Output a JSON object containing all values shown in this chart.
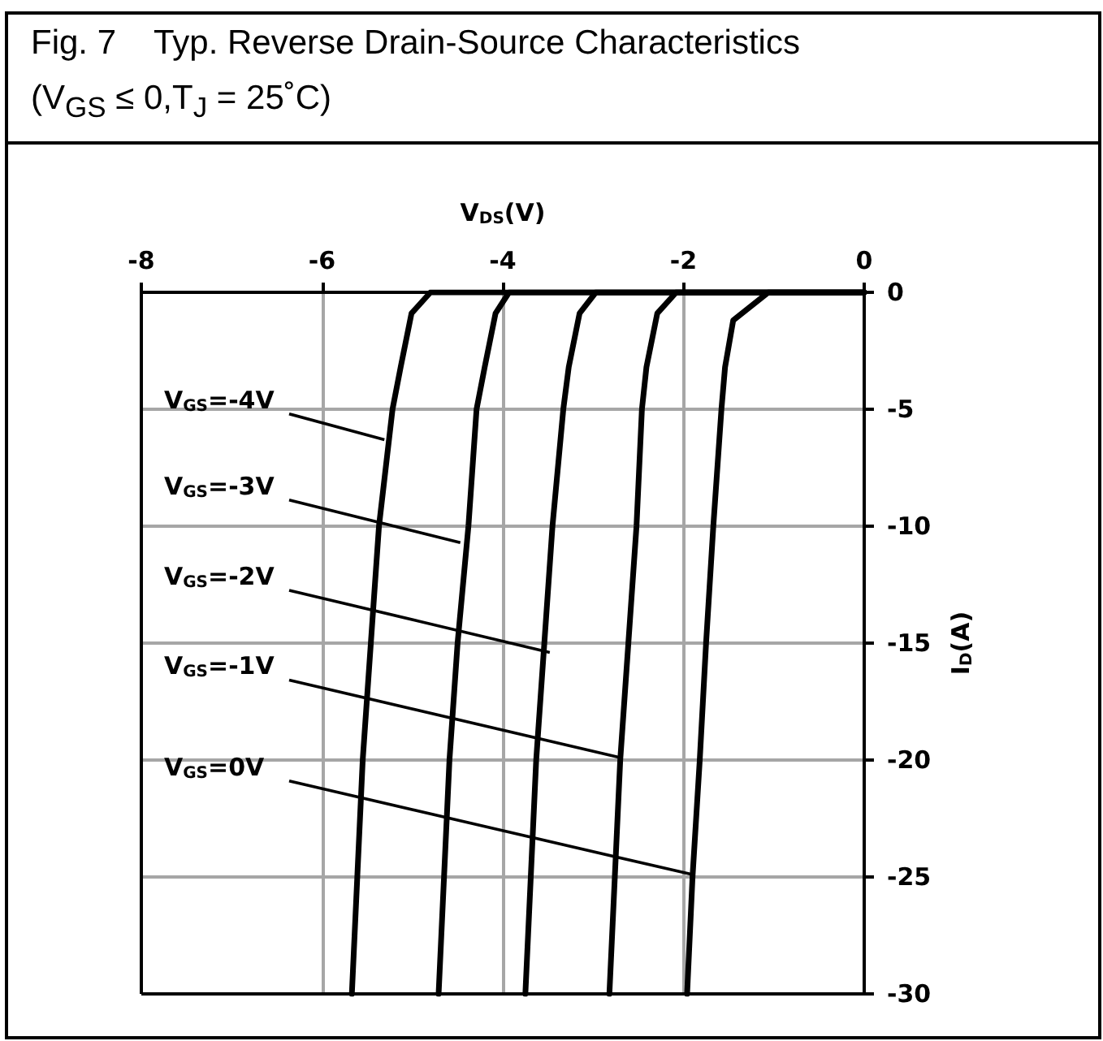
{
  "chart_data": {
    "type": "line",
    "title": "Fig. 7    Typ. Reverse Drain-Source Characteristics",
    "subtitle": "(V$_{GS}$ ≤ 0,T$_{J}$ = 25˚C)",
    "xlabel": "V$_{DS}$(V)",
    "ylabel": "I$_{D}$(A)",
    "xlim": [
      -8,
      0
    ],
    "xticks": [
      -8,
      -6,
      -4,
      -2,
      0
    ],
    "ylim": [
      -30,
      0
    ],
    "yticks": [
      -30,
      -25,
      -20,
      -15,
      -10,
      -5,
      0
    ],
    "grid": true,
    "marker": "none",
    "line_style": "solid",
    "series": [
      {
        "color": "#000000",
        "x": [
          0,
          -4.8,
          -5.01,
          -5.13,
          -5.22,
          -5.37,
          -5.46,
          -5.55,
          -5.61,
          -5.67
        ],
        "values": [
          0,
          0,
          -0.9,
          -3.2,
          -5,
          -10,
          -15,
          -20,
          -25,
          -30
        ]
      },
      {
        "color": "#000000",
        "x": [
          0,
          -3.93,
          -4.08,
          -4.2,
          -4.29,
          -4.38,
          -4.5,
          -4.59,
          -4.65,
          -4.71
        ],
        "values": [
          0,
          0,
          -0.9,
          -3.2,
          -5,
          -10,
          -15,
          -20,
          -25,
          -30
        ]
      },
      {
        "color": "#000000",
        "x": [
          0,
          -2.97,
          -3.15,
          -3.27,
          -3.33,
          -3.45,
          -3.54,
          -3.63,
          -3.69,
          -3.75
        ],
        "values": [
          0,
          0,
          -0.9,
          -3.2,
          -5,
          -10,
          -15,
          -20,
          -25,
          -30
        ]
      },
      {
        "color": "#000000",
        "x": [
          0,
          -2.08,
          -2.29,
          -2.41,
          -2.46,
          -2.52,
          -2.61,
          -2.7,
          -2.76,
          -2.82
        ],
        "values": [
          0,
          0,
          -0.9,
          -3.2,
          -5,
          -10,
          -15,
          -20,
          -25,
          -30
        ]
      },
      {
        "color": "#000000",
        "x": [
          0,
          -1.06,
          -1.45,
          -1.54,
          -1.58,
          -1.67,
          -1.75,
          -1.82,
          -1.9,
          -1.96
        ],
        "values": [
          0,
          0,
          -1.2,
          -3.2,
          -5,
          -10,
          -15,
          -20,
          -25,
          -30
        ]
      }
    ],
    "annotations": [
      {
        "text": "V$_{GS}$=-4V",
        "x": -5.31,
        "y": -6.3
      },
      {
        "text": "V$_{GS}$=-3V",
        "x": -4.47,
        "y": -10.7
      },
      {
        "text": "V$_{GS}$=-2V",
        "x": -3.48,
        "y": -15.4
      },
      {
        "text": "V$_{GS}$=-1V",
        "x": -2.7,
        "y": -19.9
      },
      {
        "text": "V$_{GS}$=0V",
        "x": -1.9,
        "y": -24.9
      }
    ]
  }
}
